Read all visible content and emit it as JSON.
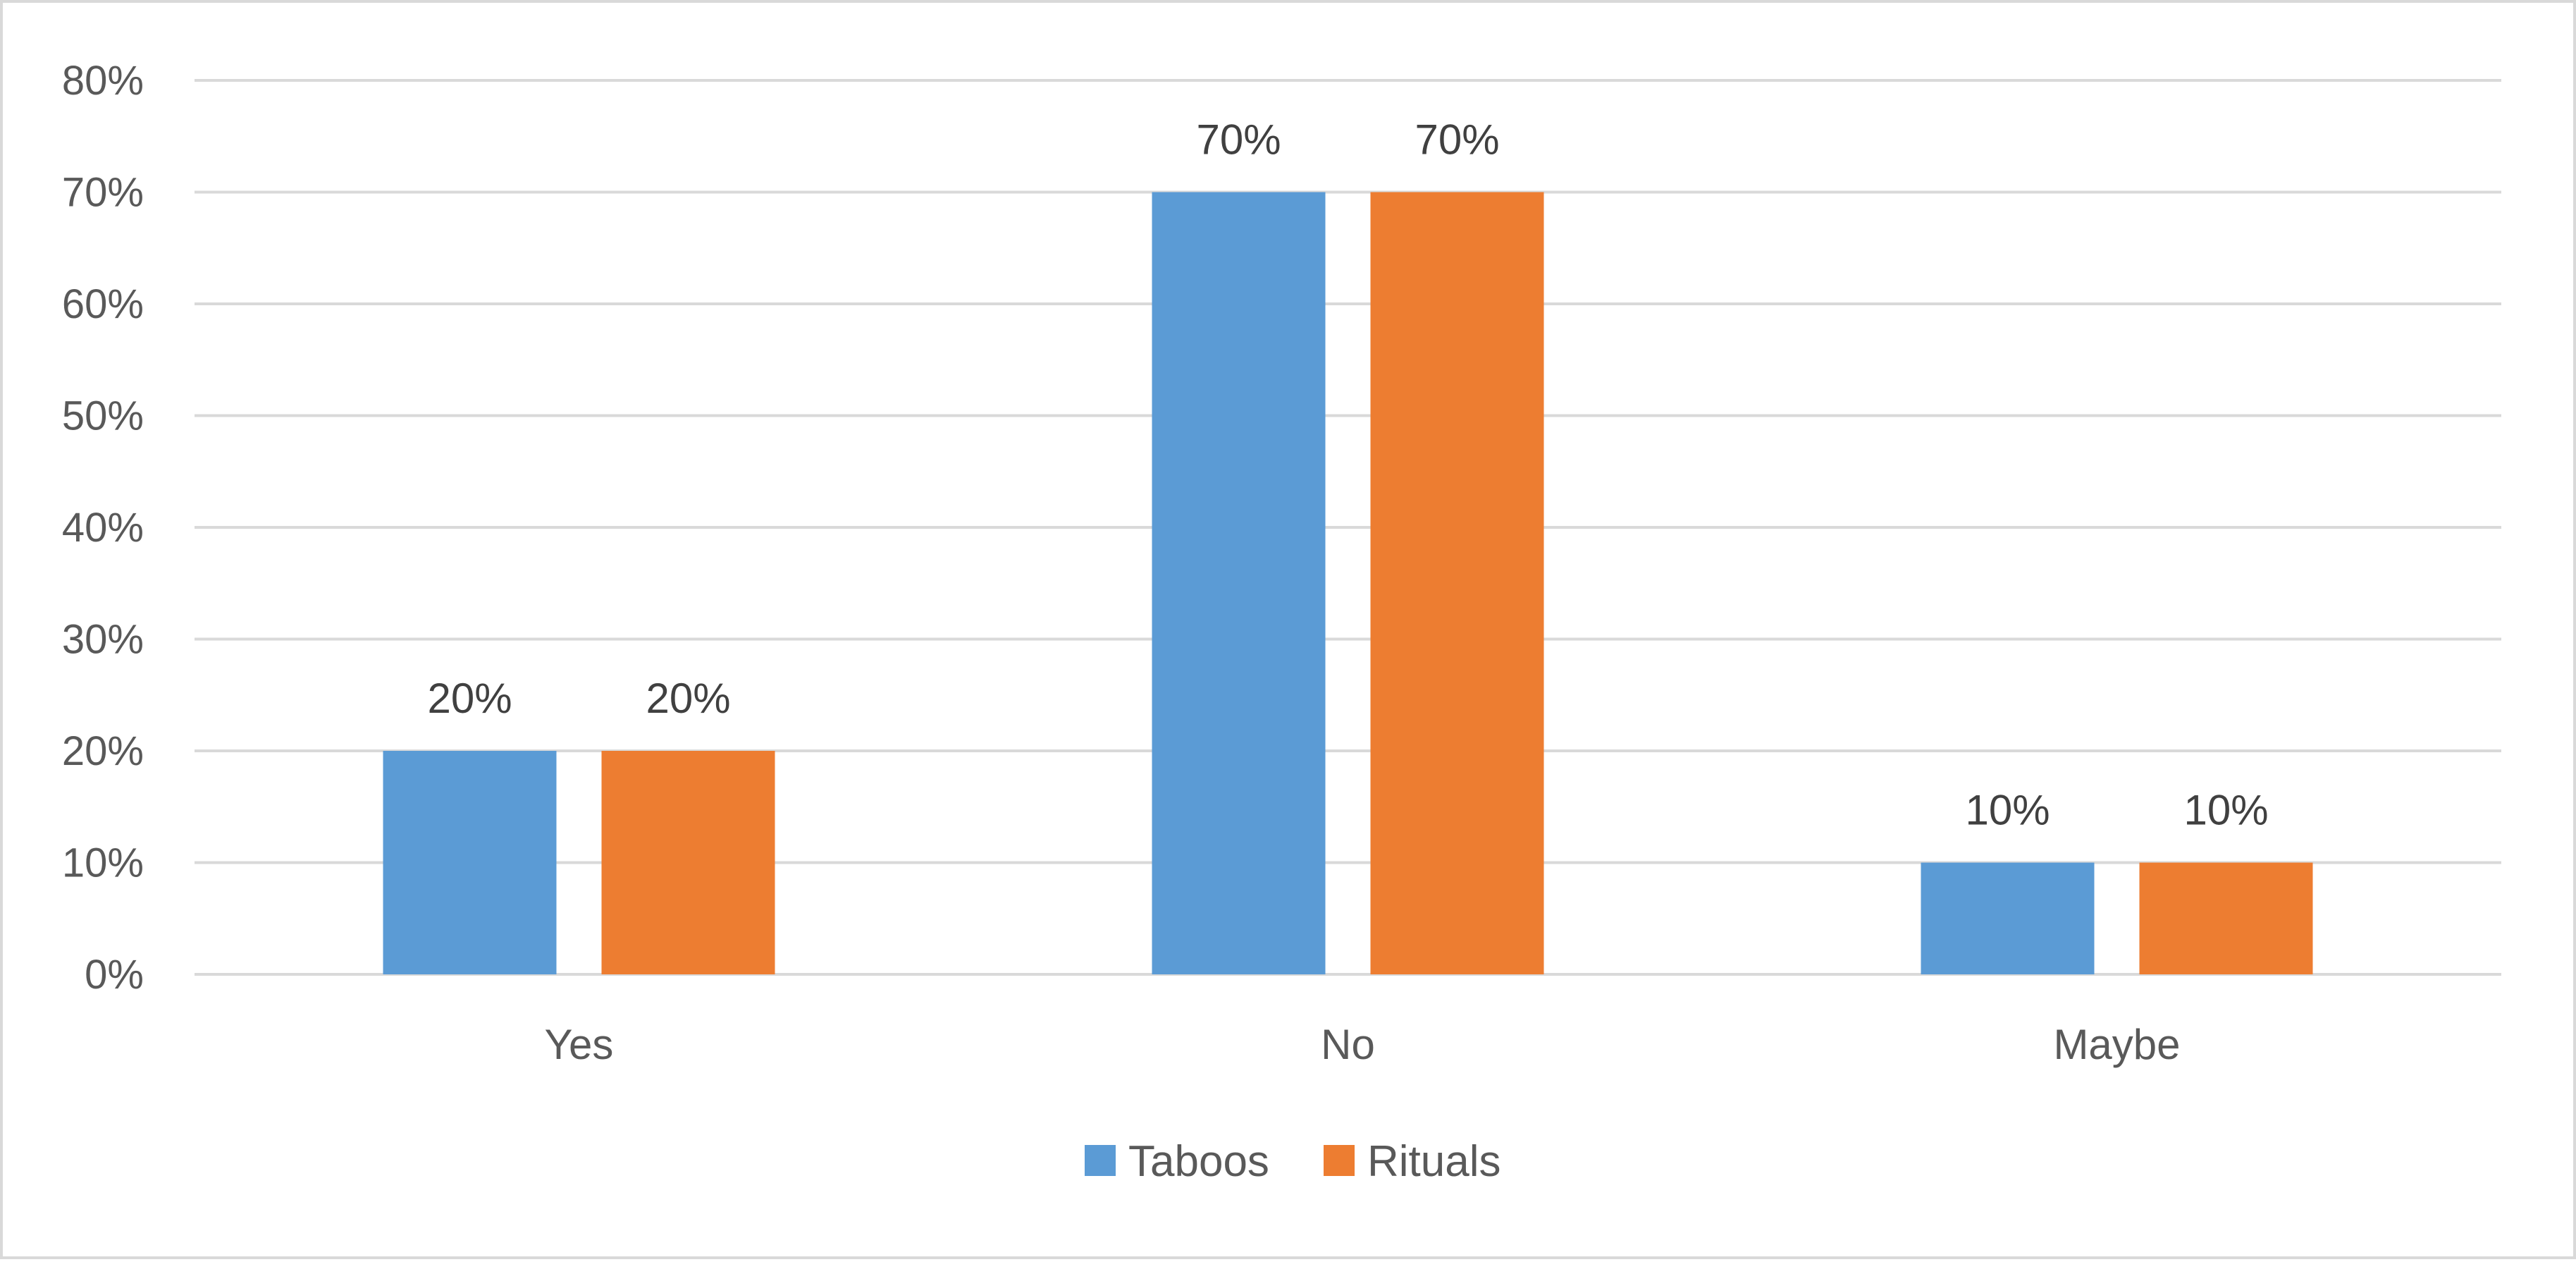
{
  "chart_data": {
    "type": "bar",
    "title": "",
    "xlabel": "",
    "ylabel": "",
    "categories": [
      "Yes",
      "No",
      "Maybe"
    ],
    "series": [
      {
        "name": "Taboos",
        "values": [
          20,
          70,
          10
        ],
        "color": "#5b9bd5"
      },
      {
        "name": "Rituals",
        "values": [
          20,
          70,
          10
        ],
        "color": "#ed7d31"
      }
    ],
    "ylim": [
      0,
      80
    ],
    "yticks": [
      0,
      10,
      20,
      30,
      40,
      50,
      60,
      70,
      80
    ],
    "value_suffix": "%",
    "grid": true,
    "grid_color": "#d9d9d9",
    "data_labels": true,
    "legend_position": "bottom"
  }
}
